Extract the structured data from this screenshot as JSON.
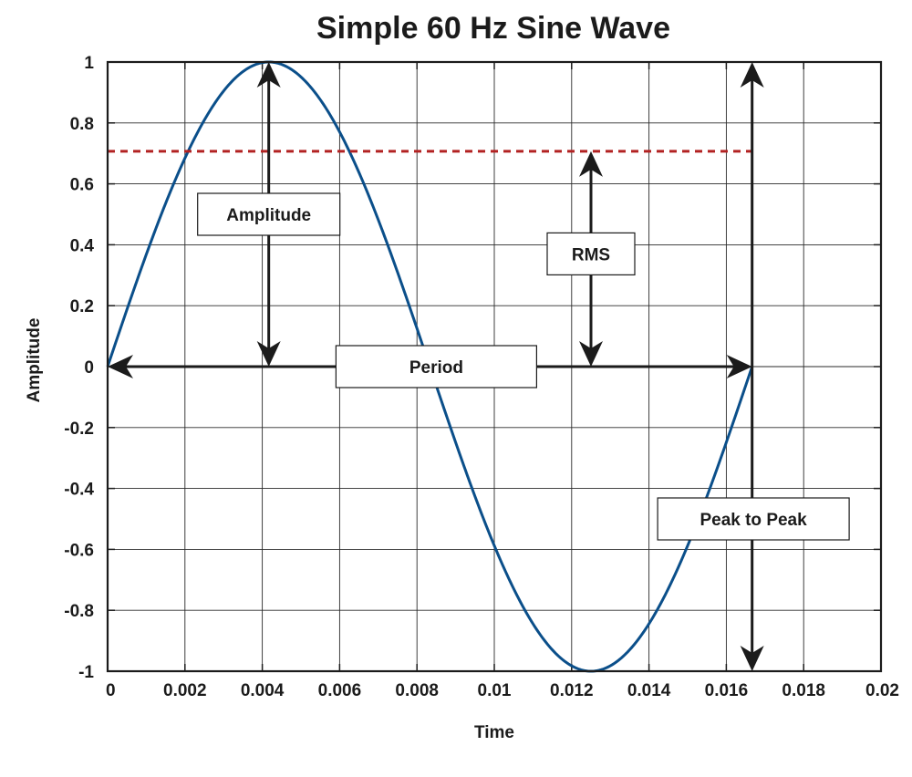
{
  "chart_data": {
    "type": "line",
    "title": "Simple 60 Hz Sine Wave",
    "xlabel": "Time",
    "ylabel": "Amplitude",
    "xlim": [
      0,
      0.02
    ],
    "ylim": [
      -1,
      1
    ],
    "grid": true,
    "xticks": [
      0,
      0.002,
      0.004,
      0.006,
      0.008,
      0.01,
      0.012,
      0.014,
      0.016,
      0.018,
      0.02
    ],
    "xtick_labels": [
      "0",
      "0.002",
      "0.004",
      "0.006",
      "0.008",
      "0.01",
      "0.012",
      "0.014",
      "0.016",
      "0.018",
      "0.02"
    ],
    "yticks": [
      1,
      0.8,
      0.6,
      0.4,
      0.2,
      0,
      -0.2,
      -0.4,
      -0.6,
      -0.8,
      -1
    ],
    "ytick_labels": [
      "1",
      "0.8",
      "0.6",
      "0.4",
      "0.2",
      "0",
      "-0.2",
      "-0.4",
      "-0.6",
      "-0.8",
      "-1"
    ],
    "series": [
      {
        "name": "sine",
        "function": "sin(2*pi*f*t)",
        "frequency_hz": 60,
        "amplitude": 1,
        "t_start": 0,
        "t_end": 0.016667,
        "color": "#0b4f8a"
      }
    ],
    "reference_lines": [
      {
        "name": "rms-level",
        "y": 0.707,
        "x_start": 0,
        "x_end": 0.016667,
        "style": "dashed",
        "color": "#b22222"
      }
    ],
    "annotations": [
      {
        "name": "amplitude",
        "label": "Amplitude",
        "arrow": {
          "orientation": "vertical",
          "at": 0.004167,
          "from": 0,
          "to": 1
        },
        "label_at": [
          0.004167,
          0.5
        ]
      },
      {
        "name": "rms",
        "label": "RMS",
        "arrow": {
          "orientation": "vertical",
          "at": 0.0125,
          "from": 0,
          "to": 0.707
        },
        "label_at": [
          0.0125,
          0.37
        ]
      },
      {
        "name": "period",
        "label": "Period",
        "arrow": {
          "orientation": "horizontal",
          "at": 0,
          "from": 0,
          "to": 0.016667
        },
        "label_at": [
          0.0085,
          0
        ]
      },
      {
        "name": "peak-to-peak",
        "label": "Peak to Peak",
        "arrow": {
          "orientation": "vertical",
          "at": 0.016667,
          "from": -1,
          "to": 1
        },
        "label_at": [
          0.0167,
          -0.5
        ]
      }
    ]
  }
}
